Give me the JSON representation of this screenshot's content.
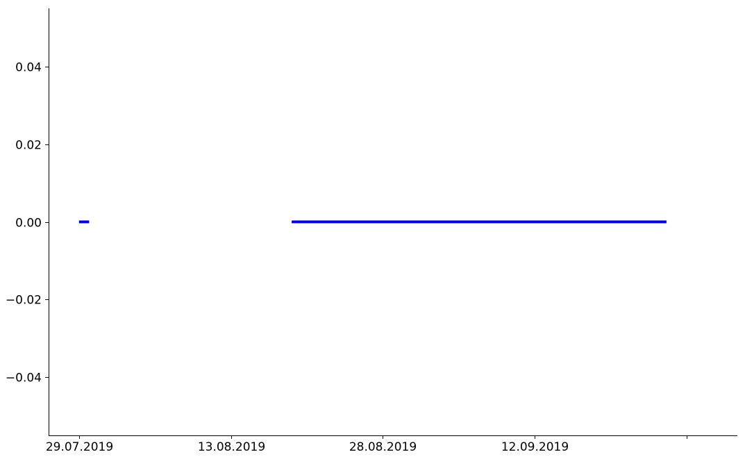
{
  "chart_data": {
    "type": "line",
    "title": "",
    "xlabel": "",
    "ylabel": "",
    "x_type": "date",
    "xlim": [
      "2019-07-26",
      "2019-10-02"
    ],
    "ylim": [
      -0.055,
      0.055
    ],
    "x_ticks": [
      {
        "value": "2019-07-29",
        "label": "29.07.2019"
      },
      {
        "value": "2019-08-13",
        "label": "13.08.2019"
      },
      {
        "value": "2019-08-28",
        "label": "28.08.2019"
      },
      {
        "value": "2019-09-12",
        "label": "12.09.2019"
      },
      {
        "value": "2019-09-27",
        "label": ""
      }
    ],
    "y_ticks": [
      {
        "value": 0.04,
        "label": "0.04"
      },
      {
        "value": 0.02,
        "label": "0.02"
      },
      {
        "value": 0.0,
        "label": "0.00"
      },
      {
        "value": -0.02,
        "label": "−0.02"
      },
      {
        "value": -0.04,
        "label": "−0.04"
      }
    ],
    "grid": false,
    "legend": "none",
    "spines": [
      "left",
      "bottom"
    ],
    "series": [
      {
        "color": "#0000dd",
        "segments": [
          [
            {
              "x": "2019-07-29",
              "y": 0
            },
            {
              "x": "2019-07-30",
              "y": 0
            }
          ],
          [
            {
              "x": "2019-08-19",
              "y": 0
            },
            {
              "x": "2019-09-25",
              "y": 0
            }
          ]
        ]
      }
    ]
  }
}
